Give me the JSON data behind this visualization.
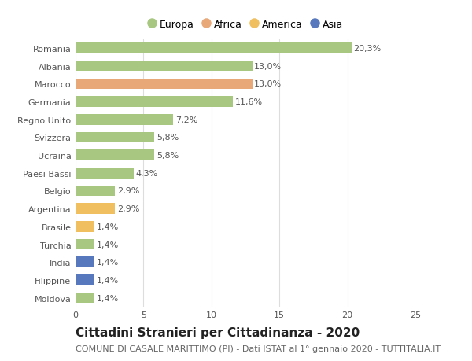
{
  "categories": [
    "Romania",
    "Albania",
    "Marocco",
    "Germania",
    "Regno Unito",
    "Svizzera",
    "Ucraina",
    "Paesi Bassi",
    "Belgio",
    "Argentina",
    "Brasile",
    "Turchia",
    "India",
    "Filippine",
    "Moldova"
  ],
  "values": [
    20.3,
    13.0,
    13.0,
    11.6,
    7.2,
    5.8,
    5.8,
    4.3,
    2.9,
    2.9,
    1.4,
    1.4,
    1.4,
    1.4,
    1.4
  ],
  "continents": [
    "Europa",
    "Europa",
    "Africa",
    "Europa",
    "Europa",
    "Europa",
    "Europa",
    "Europa",
    "Europa",
    "America",
    "America",
    "Europa",
    "Asia",
    "Asia",
    "Europa"
  ],
  "labels": [
    "20,3%",
    "13,0%",
    "13,0%",
    "11,6%",
    "7,2%",
    "5,8%",
    "5,8%",
    "4,3%",
    "2,9%",
    "2,9%",
    "1,4%",
    "1,4%",
    "1,4%",
    "1,4%",
    "1,4%"
  ],
  "colors": {
    "Europa": "#a8c882",
    "Africa": "#e8a878",
    "America": "#f0c060",
    "Asia": "#5878be"
  },
  "legend_order": [
    "Europa",
    "Africa",
    "America",
    "Asia"
  ],
  "title": "Cittadini Stranieri per Cittadinanza - 2020",
  "subtitle": "COMUNE DI CASALE MARITTIMO (PI) - Dati ISTAT al 1° gennaio 2020 - TUTTITALIA.IT",
  "xlim": [
    0,
    25
  ],
  "xticks": [
    0,
    5,
    10,
    15,
    20,
    25
  ],
  "background_color": "#ffffff",
  "grid_color": "#dddddd",
  "bar_height": 0.6,
  "label_fontsize": 8,
  "title_fontsize": 11,
  "subtitle_fontsize": 8,
  "tick_fontsize": 8,
  "legend_fontsize": 9
}
